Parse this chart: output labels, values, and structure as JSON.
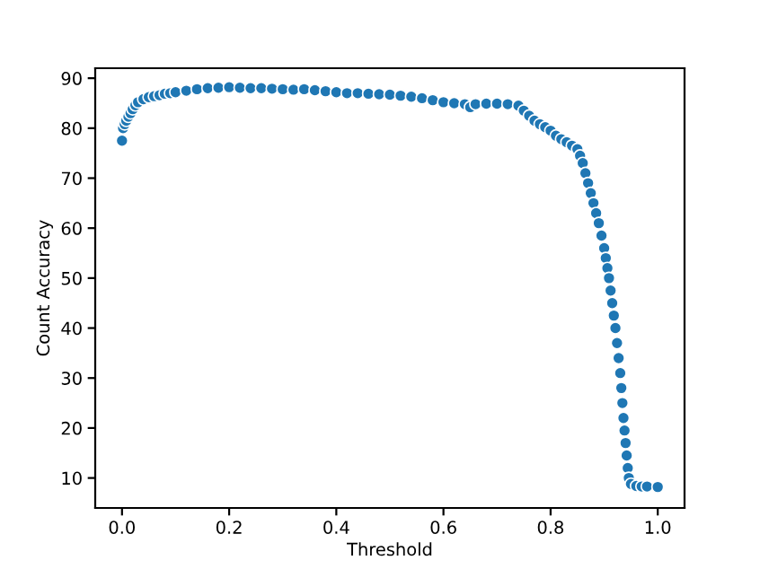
{
  "chart_data": {
    "type": "scatter",
    "xlabel": "Threshold",
    "ylabel": "Count Accuracy",
    "xlim": [
      -0.05,
      1.05
    ],
    "xticks": [
      {
        "value": 0,
        "label": "0.0"
      },
      0.2,
      0.4,
      0.6,
      0.8,
      {
        "value": 1,
        "label": "1.0"
      }
    ],
    "ylim": [
      4,
      92
    ],
    "yticks": [
      10,
      20,
      30,
      40,
      50,
      60,
      70,
      80,
      90
    ],
    "grid": false,
    "legend": false,
    "marker": "circle",
    "series": [
      {
        "color": "#1f77b4",
        "x": [
          0.0,
          0.002,
          0.005,
          0.008,
          0.012,
          0.016,
          0.02,
          0.025,
          0.03,
          0.04,
          0.05,
          0.06,
          0.07,
          0.08,
          0.09,
          0.1,
          0.12,
          0.14,
          0.16,
          0.18,
          0.2,
          0.22,
          0.24,
          0.26,
          0.28,
          0.3,
          0.32,
          0.34,
          0.36,
          0.38,
          0.4,
          0.42,
          0.44,
          0.46,
          0.48,
          0.5,
          0.52,
          0.54,
          0.56,
          0.58,
          0.6,
          0.62,
          0.64,
          0.65,
          0.66,
          0.68,
          0.7,
          0.72,
          0.74,
          0.75,
          0.76,
          0.77,
          0.78,
          0.79,
          0.8,
          0.81,
          0.82,
          0.83,
          0.84,
          0.85,
          0.855,
          0.86,
          0.865,
          0.87,
          0.875,
          0.88,
          0.885,
          0.89,
          0.895,
          0.9,
          0.903,
          0.906,
          0.909,
          0.912,
          0.915,
          0.918,
          0.921,
          0.924,
          0.927,
          0.93,
          0.932,
          0.934,
          0.936,
          0.938,
          0.94,
          0.942,
          0.944,
          0.946,
          0.95,
          0.96,
          0.97,
          0.98,
          1.0
        ],
        "values": [
          77.5,
          80.0,
          80.8,
          81.5,
          82.3,
          83.0,
          83.8,
          84.6,
          85.2,
          85.8,
          86.2,
          86.4,
          86.6,
          86.9,
          87.0,
          87.2,
          87.5,
          87.8,
          88.0,
          88.1,
          88.2,
          88.1,
          88.0,
          88.0,
          87.9,
          87.8,
          87.7,
          87.8,
          87.6,
          87.4,
          87.2,
          87.0,
          87.0,
          86.9,
          86.8,
          86.7,
          86.5,
          86.3,
          86.0,
          85.6,
          85.2,
          85.0,
          84.8,
          84.2,
          84.8,
          84.9,
          84.9,
          84.8,
          84.5,
          83.5,
          82.5,
          81.5,
          80.8,
          80.2,
          79.5,
          78.5,
          77.8,
          77.2,
          76.5,
          75.8,
          74.5,
          73,
          71,
          69,
          67,
          65,
          63,
          61,
          58.5,
          56,
          54,
          52,
          50,
          47.5,
          45,
          42.5,
          40,
          37,
          34,
          31,
          28,
          25,
          22,
          19.5,
          17,
          14.5,
          12,
          10,
          8.8,
          8.4,
          8.3,
          8.3,
          8.2
        ]
      }
    ]
  }
}
